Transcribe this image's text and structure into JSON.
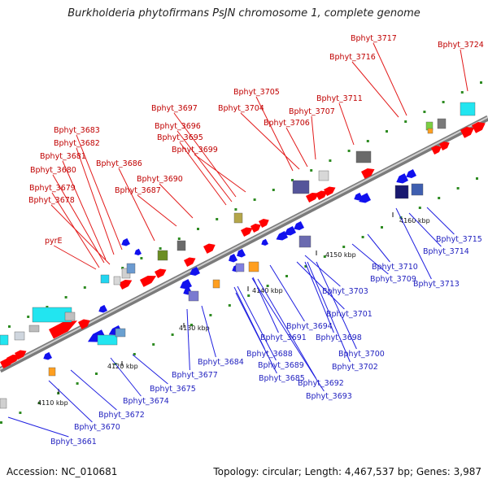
{
  "title": "Burkholderia phytofirmans PsJN chromosome 1, complete genome",
  "footer": {
    "accession": "Accession: NC_010681",
    "summary": "Topology: circular; Length: 4,467,537 bp; Genes: 3,987"
  },
  "ticks": [
    {
      "label": "4110 kbp"
    },
    {
      "label": "4120 kbp"
    },
    {
      "label": "4130 kbp"
    },
    {
      "label": "4140 kbp"
    },
    {
      "label": "4150 kbp"
    },
    {
      "label": "4160 kbp"
    }
  ],
  "genes_top": [
    {
      "name": "Bphyt_3717"
    },
    {
      "name": "Bphyt_3724"
    },
    {
      "name": "Bphyt_3716"
    },
    {
      "name": "Bphyt_3705"
    },
    {
      "name": "Bphyt_3711"
    },
    {
      "name": "Bphyt_3697"
    },
    {
      "name": "Bphyt_3704"
    },
    {
      "name": "Bphyt_3707"
    },
    {
      "name": "Bphyt_3696"
    },
    {
      "name": "Bphyt_3706"
    },
    {
      "name": "Bphyt_3683"
    },
    {
      "name": "Bphyt_3695"
    },
    {
      "name": "Bphyt_3682"
    },
    {
      "name": "Bphyt_3699"
    },
    {
      "name": "Bphyt_3681"
    },
    {
      "name": "Bphyt_3686"
    },
    {
      "name": "Bphyt_3680"
    },
    {
      "name": "Bphyt_3690"
    },
    {
      "name": "Bphyt_3679"
    },
    {
      "name": "Bphyt_3687"
    },
    {
      "name": "Bphyt_3678"
    },
    {
      "name": "pyrE"
    }
  ],
  "genes_bottom": [
    {
      "name": "Bphyt_3715"
    },
    {
      "name": "Bphyt_3714"
    },
    {
      "name": "Bphyt_3710"
    },
    {
      "name": "Bphyt_3713"
    },
    {
      "name": "Bphyt_3709"
    },
    {
      "name": "Bphyt_3703"
    },
    {
      "name": "Bphyt_3701"
    },
    {
      "name": "Bphyt_3694"
    },
    {
      "name": "Bphyt_3698"
    },
    {
      "name": "Bphyt_3691"
    },
    {
      "name": "Bphyt_3700"
    },
    {
      "name": "Bphyt_3688"
    },
    {
      "name": "Bphyt_3684"
    },
    {
      "name": "Bphyt_3689"
    },
    {
      "name": "Bphyt_3702"
    },
    {
      "name": "Bphyt_3677"
    },
    {
      "name": "Bphyt_3685"
    },
    {
      "name": "Bphyt_3692"
    },
    {
      "name": "Bphyt_3675"
    },
    {
      "name": "Bphyt_3693"
    },
    {
      "name": "Bphyt_3674"
    },
    {
      "name": "Bphyt_3672"
    },
    {
      "name": "Bphyt_3670"
    },
    {
      "name": "Bphyt_3661"
    }
  ],
  "colors": {
    "forward": "#ff0000",
    "reverse": "#1111ee",
    "label_forward": "#c00000",
    "label_reverse": "#1f1fbf",
    "backbone": "#8a8a8a"
  }
}
